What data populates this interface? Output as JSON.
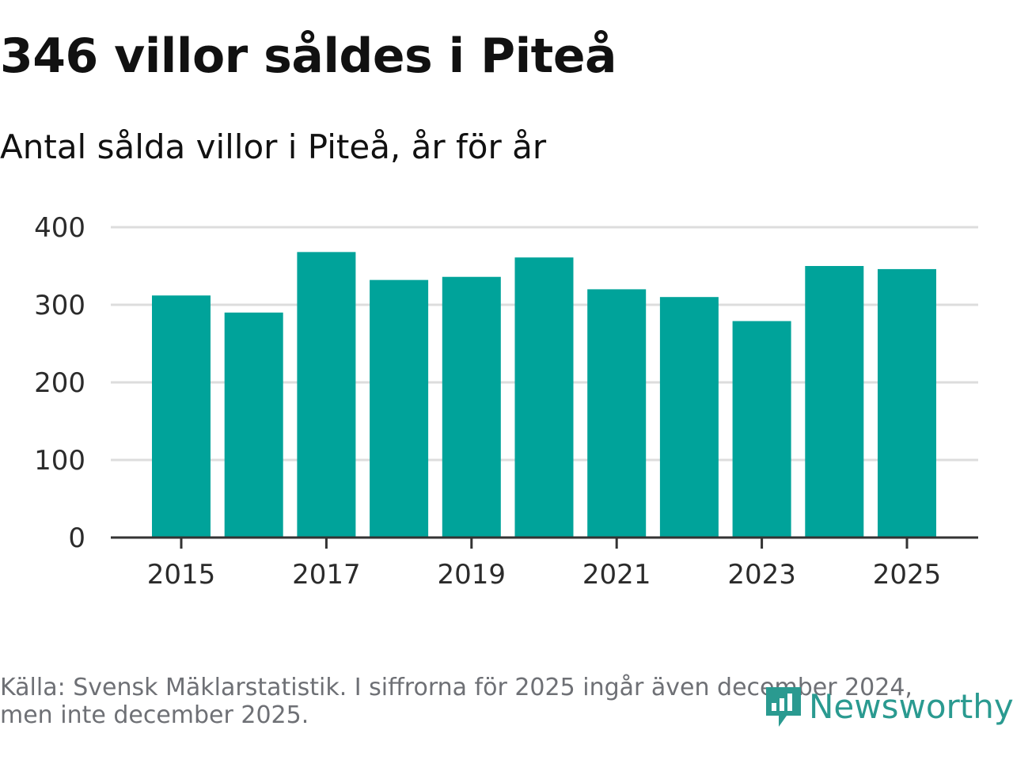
{
  "title": "346 villor såldes i Piteå",
  "subtitle": "Antal sålda villor i Piteå, år för år",
  "source": "Källa: Svensk Mäklarstatistik. I siffrorna för 2025 ingår även december 2024, men inte december 2025.",
  "logo_text": "Newsworthy",
  "colors": {
    "bar": "#00a39a",
    "grid": "#dddddd",
    "axis": "#333333",
    "logo": "#2a9a90"
  },
  "chart_data": {
    "type": "bar",
    "title": "Antal sålda villor i Piteå, år för år",
    "xlabel": "",
    "ylabel": "",
    "categories": [
      "2015",
      "2016",
      "2017",
      "2018",
      "2019",
      "2020",
      "2021",
      "2022",
      "2023",
      "2024",
      "2025"
    ],
    "values": [
      312,
      290,
      368,
      332,
      336,
      361,
      320,
      310,
      279,
      350,
      346
    ],
    "ylim": [
      0,
      400
    ],
    "yticks": [
      0,
      100,
      200,
      300,
      400
    ],
    "xtick_labels": [
      "2015",
      "2017",
      "2019",
      "2021",
      "2023",
      "2025"
    ],
    "grid": true,
    "legend": "none"
  }
}
